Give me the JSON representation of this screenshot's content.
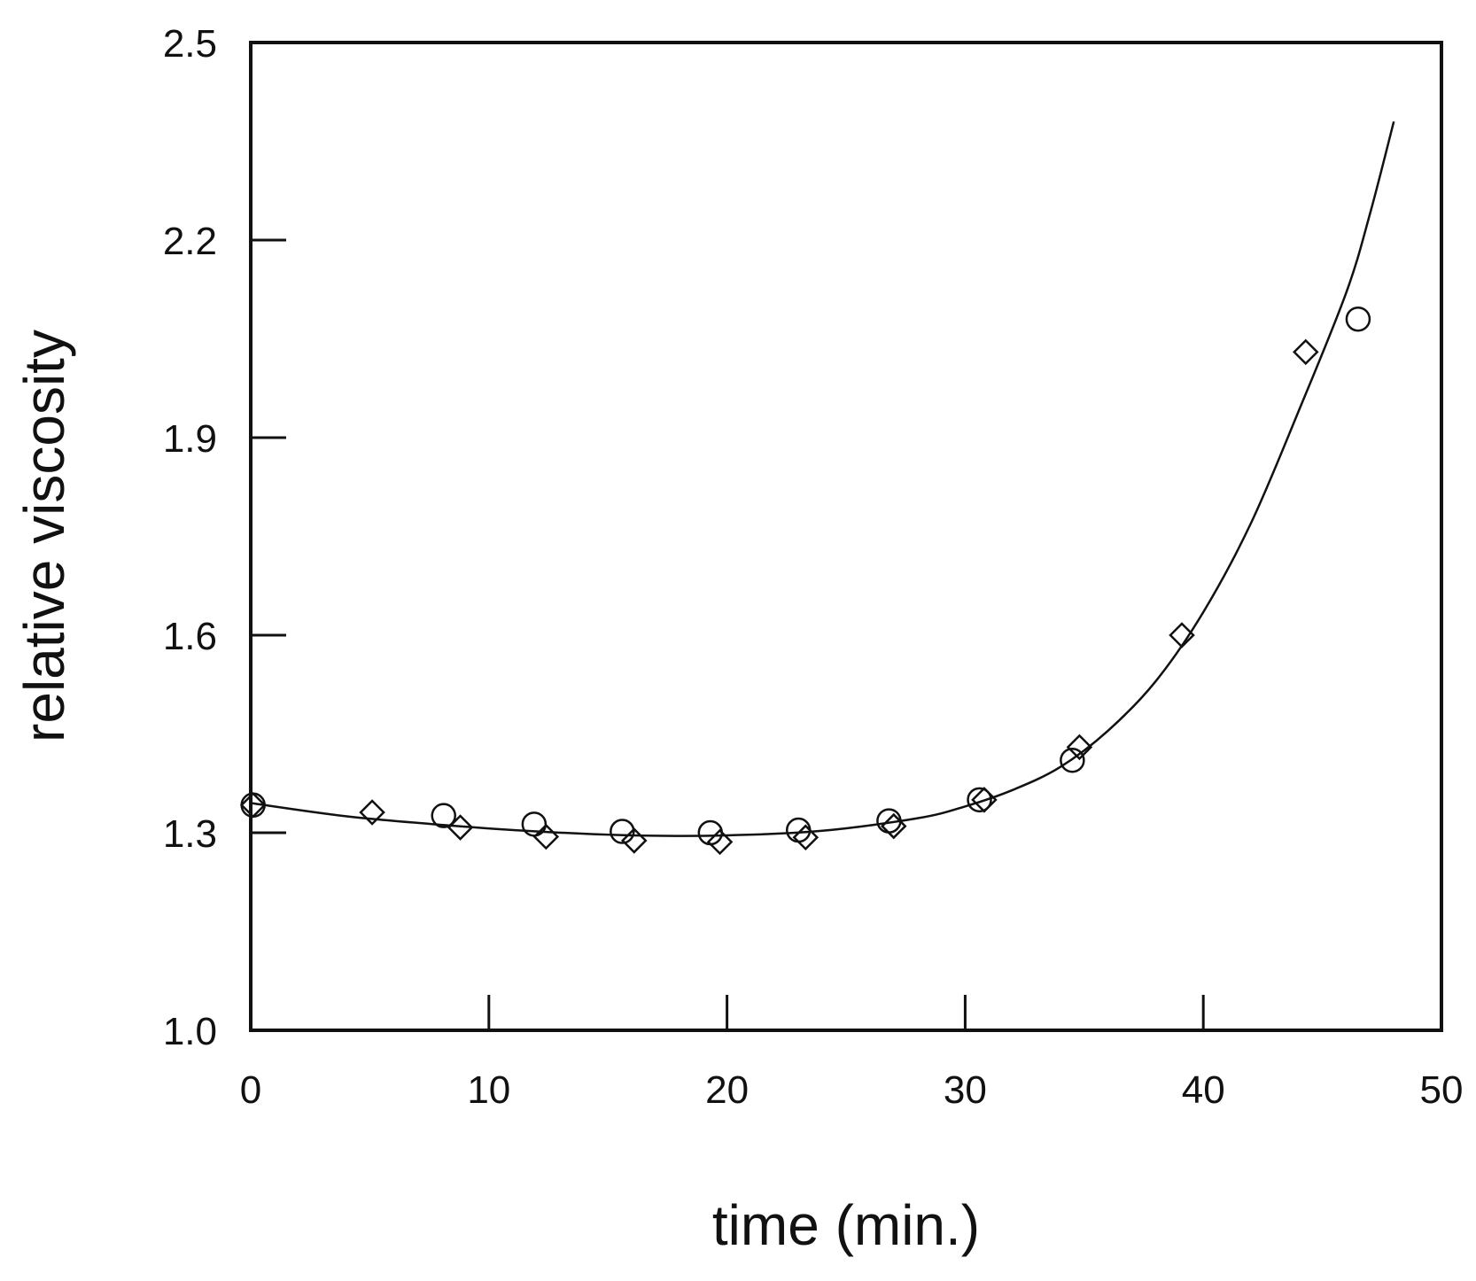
{
  "chart_data": {
    "type": "scatter",
    "title": "",
    "xlabel": "time (min.)",
    "ylabel": "relative viscosity",
    "xlim": [
      0,
      50
    ],
    "ylim": [
      1.0,
      2.5
    ],
    "x_ticks": [
      0,
      10,
      20,
      30,
      40,
      50
    ],
    "x_tick_labels": [
      "0",
      "10",
      "20",
      "30",
      "40",
      "50"
    ],
    "y_ticks": [
      1.0,
      1.3,
      1.6,
      1.9,
      2.2,
      2.5
    ],
    "y_tick_labels": [
      "1.0",
      "1.3",
      "1.6",
      "1.9",
      "2.2",
      "2.5"
    ],
    "grid": false,
    "legend": "none",
    "series": [
      {
        "marker": "circle",
        "points": [
          {
            "x": 0.1,
            "y": 1.342
          },
          {
            "x": 8.1,
            "y": 1.326
          },
          {
            "x": 11.9,
            "y": 1.313
          },
          {
            "x": 15.6,
            "y": 1.302
          },
          {
            "x": 19.3,
            "y": 1.3
          },
          {
            "x": 23.0,
            "y": 1.304
          },
          {
            "x": 26.8,
            "y": 1.318
          },
          {
            "x": 30.6,
            "y": 1.35
          },
          {
            "x": 34.5,
            "y": 1.41
          },
          {
            "x": 46.5,
            "y": 2.08
          }
        ]
      },
      {
        "marker": "diamond",
        "points": [
          {
            "x": 0.1,
            "y": 1.342
          },
          {
            "x": 5.1,
            "y": 1.331
          },
          {
            "x": 8.8,
            "y": 1.308
          },
          {
            "x": 12.4,
            "y": 1.294
          },
          {
            "x": 16.1,
            "y": 1.288
          },
          {
            "x": 19.7,
            "y": 1.286
          },
          {
            "x": 23.3,
            "y": 1.293
          },
          {
            "x": 27.0,
            "y": 1.31
          },
          {
            "x": 30.8,
            "y": 1.35
          },
          {
            "x": 34.8,
            "y": 1.43
          },
          {
            "x": 39.1,
            "y": 1.6
          },
          {
            "x": 44.3,
            "y": 2.03
          }
        ]
      },
      {
        "marker": "line",
        "points": [
          {
            "x": 0,
            "y": 1.345
          },
          {
            "x": 4,
            "y": 1.325
          },
          {
            "x": 8,
            "y": 1.312
          },
          {
            "x": 12,
            "y": 1.302
          },
          {
            "x": 16,
            "y": 1.296
          },
          {
            "x": 20,
            "y": 1.296
          },
          {
            "x": 24,
            "y": 1.303
          },
          {
            "x": 28,
            "y": 1.322
          },
          {
            "x": 30,
            "y": 1.34
          },
          {
            "x": 32,
            "y": 1.365
          },
          {
            "x": 34,
            "y": 1.4
          },
          {
            "x": 36,
            "y": 1.455
          },
          {
            "x": 38,
            "y": 1.53
          },
          {
            "x": 40,
            "y": 1.635
          },
          {
            "x": 42,
            "y": 1.77
          },
          {
            "x": 44,
            "y": 1.94
          },
          {
            "x": 46,
            "y": 2.12
          },
          {
            "x": 47,
            "y": 2.24
          },
          {
            "x": 48,
            "y": 2.38
          }
        ]
      }
    ]
  }
}
